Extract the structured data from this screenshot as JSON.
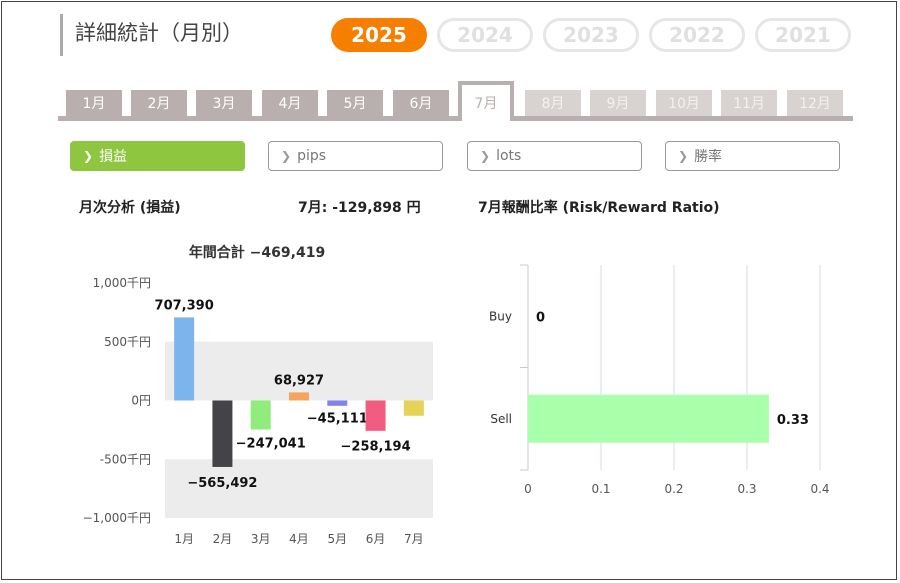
{
  "page_title": "詳細統計（月別）",
  "years": [
    {
      "label": "2025",
      "active": true
    },
    {
      "label": "2024",
      "active": false
    },
    {
      "label": "2023",
      "active": false
    },
    {
      "label": "2022",
      "active": false
    },
    {
      "label": "2021",
      "active": false
    }
  ],
  "months": [
    {
      "label": "1月",
      "state": "normal"
    },
    {
      "label": "2月",
      "state": "normal"
    },
    {
      "label": "3月",
      "state": "normal"
    },
    {
      "label": "4月",
      "state": "normal"
    },
    {
      "label": "5月",
      "state": "normal"
    },
    {
      "label": "6月",
      "state": "normal"
    },
    {
      "label": "7月",
      "state": "active"
    },
    {
      "label": "8月",
      "state": "disabled"
    },
    {
      "label": "9月",
      "state": "disabled"
    },
    {
      "label": "10月",
      "state": "disabled"
    },
    {
      "label": "11月",
      "state": "disabled"
    },
    {
      "label": "12月",
      "state": "disabled"
    }
  ],
  "metrics": [
    {
      "label": "損益",
      "active": true
    },
    {
      "label": "pips",
      "active": false
    },
    {
      "label": "lots",
      "active": false
    },
    {
      "label": "勝率",
      "active": false
    }
  ],
  "left_section": {
    "title": "月次分析 (損益)",
    "month_summary": "7月:  -129,898 円"
  },
  "right_section": {
    "title": "7月報酬比率 (Risk/Reward Ratio)"
  },
  "chart_data": [
    {
      "type": "bar",
      "title": "年間合計 −469,419",
      "categories": [
        "1月",
        "2月",
        "3月",
        "4月",
        "5月",
        "6月",
        "7月"
      ],
      "values": [
        707390,
        -565492,
        -247041,
        68927,
        -45111,
        -258194,
        -129898
      ],
      "data_labels": [
        "707,390",
        "−565,492",
        "−247,041",
        "68,927",
        "−45,111",
        "−258,194",
        ""
      ],
      "colors": [
        "#7cb5ec",
        "#434348",
        "#90ed7d",
        "#f7a35c",
        "#8085e9",
        "#f15c80",
        "#e4d354"
      ],
      "yticks": [
        1000000,
        500000,
        0,
        -500000,
        -1000000
      ],
      "ytick_labels": [
        "1,000千円",
        "500千円",
        "0円",
        "-500千円",
        "−1,000千円"
      ],
      "ylim": [
        -1000000,
        1000000
      ]
    },
    {
      "type": "bar",
      "orientation": "horizontal",
      "categories": [
        "Buy",
        "Sell"
      ],
      "values": [
        0,
        0.33
      ],
      "data_labels": [
        "0",
        "0.33"
      ],
      "color": "#aaffaa",
      "xticks": [
        0,
        0.1,
        0.2,
        0.3,
        0.4
      ],
      "xtick_labels": [
        "0",
        "0.1",
        "0.2",
        "0.3",
        "0.4"
      ],
      "xlim": [
        0,
        0.4
      ]
    }
  ]
}
